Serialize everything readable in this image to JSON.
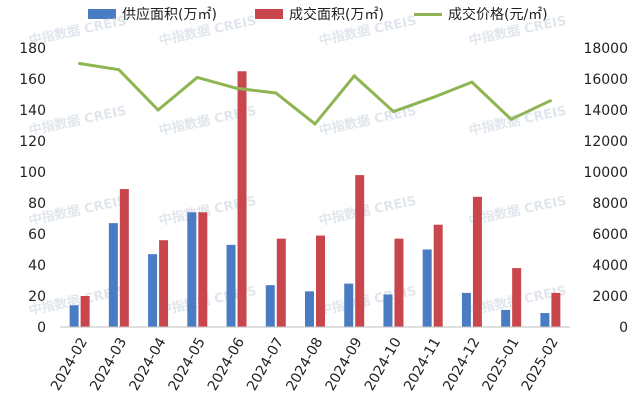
{
  "colors": {
    "supply": "#4a7cc4",
    "deal_area": "#c9474c",
    "price": "#8db552"
  },
  "watermark": "中指数据 CREIS",
  "chart_data": {
    "type": "bar",
    "categories": [
      "2024-02",
      "2024-03",
      "2024-04",
      "2024-05",
      "2024-06",
      "2024-07",
      "2024-08",
      "2024-09",
      "2024-10",
      "2024-11",
      "2024-12",
      "2025-01",
      "2025-02"
    ],
    "series": [
      {
        "name": "供应面积(万㎡)",
        "type": "bar",
        "axis": "left",
        "values": [
          14,
          67,
          47,
          74,
          53,
          27,
          23,
          28,
          21,
          50,
          22,
          11,
          9
        ]
      },
      {
        "name": "成交面积(万㎡)",
        "type": "bar",
        "axis": "left",
        "values": [
          20,
          89,
          56,
          74,
          165,
          57,
          59,
          98,
          57,
          66,
          84,
          38,
          22
        ]
      },
      {
        "name": "成交价格(元/㎡)",
        "type": "line",
        "axis": "right",
        "values": [
          17000,
          16600,
          14000,
          16100,
          15400,
          15100,
          13100,
          16200,
          13900,
          14800,
          15800,
          13400,
          14600
        ]
      }
    ],
    "ylim": [
      0,
      180
    ],
    "yticks": [
      "0",
      "20",
      "40",
      "60",
      "80",
      "100",
      "120",
      "140",
      "160",
      "180"
    ],
    "y2lim": [
      0,
      18000
    ],
    "y2ticks": [
      "0",
      "2000",
      "4000",
      "6000",
      "8000",
      "10000",
      "12000",
      "14000",
      "16000",
      "18000"
    ],
    "legend_position": "top",
    "grid": false
  }
}
